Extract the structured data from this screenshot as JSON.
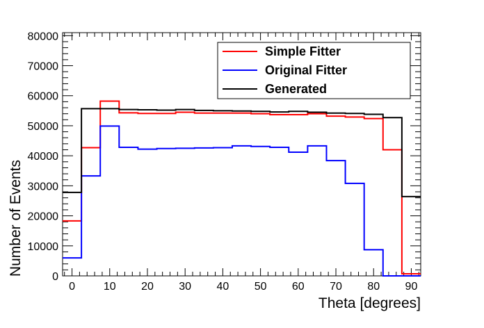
{
  "chart_data": {
    "type": "line",
    "style": "step-histogram",
    "xlabel": "Theta [degrees]",
    "ylabel": "Number of Events",
    "xlim": [
      -2.5,
      92.5
    ],
    "ylim": [
      0,
      81000
    ],
    "x_ticks": [
      0,
      10,
      20,
      30,
      40,
      50,
      60,
      70,
      80,
      90
    ],
    "y_ticks": [
      0,
      10000,
      20000,
      30000,
      40000,
      50000,
      60000,
      70000,
      80000
    ],
    "bin_edges": [
      -2.5,
      2.5,
      7.5,
      12.5,
      17.5,
      22.5,
      27.5,
      32.5,
      37.5,
      42.5,
      47.5,
      52.5,
      57.5,
      62.5,
      67.5,
      72.5,
      77.5,
      82.5,
      87.5,
      92.5
    ],
    "grid": false,
    "legend_position": "top-right",
    "series": [
      {
        "name": "Simple Fitter",
        "color": "#ff0000",
        "values": [
          18300,
          42700,
          58200,
          54300,
          54100,
          54100,
          54500,
          54200,
          54200,
          54200,
          54000,
          53700,
          53700,
          54000,
          53200,
          52900,
          52400,
          42000,
          700
        ]
      },
      {
        "name": "Original Fitter",
        "color": "#0000ff",
        "values": [
          6000,
          33300,
          49900,
          42800,
          42200,
          42400,
          42500,
          42600,
          42700,
          43300,
          43100,
          42800,
          41200,
          43300,
          38400,
          30800,
          8700,
          0,
          0
        ]
      },
      {
        "name": "Generated",
        "color": "#000000",
        "values": [
          27800,
          55700,
          55700,
          55400,
          55300,
          55200,
          55400,
          55100,
          55000,
          54900,
          54800,
          54600,
          54800,
          54500,
          54200,
          54100,
          53800,
          52700,
          26400
        ]
      }
    ]
  }
}
